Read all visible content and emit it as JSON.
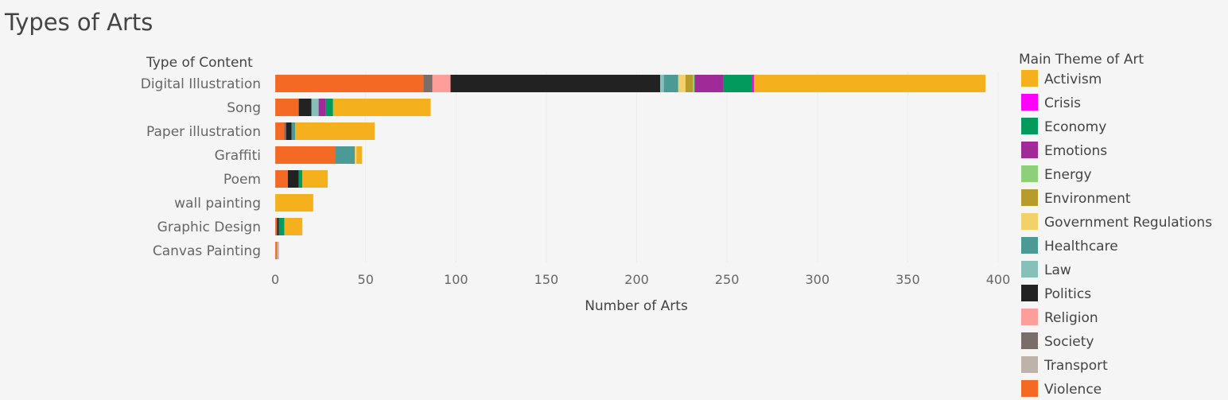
{
  "chart_data": {
    "type": "bar",
    "orientation": "horizontal",
    "stacked": true,
    "title": "Types of Arts",
    "xlabel": "Number of Arts",
    "ylabel": "Type of Content",
    "xlim": [
      -4,
      400
    ],
    "xticks": [
      0,
      50,
      100,
      150,
      200,
      250,
      300,
      350,
      400
    ],
    "grid": true,
    "legend_title": "Main Theme of Art",
    "legend_position": "right",
    "categories": [
      "Digital Illustration",
      "Song",
      "Paper illustration",
      "Graffiti",
      "Poem",
      "wall painting",
      "Graphic Design",
      "Canvas Painting"
    ],
    "segment_order": [
      "Violence",
      "Society",
      "Religion",
      "Politics",
      "Transport",
      "Law",
      "Healthcare",
      "Government Regulations",
      "Environment",
      "Energy",
      "Emotions",
      "Economy",
      "Crisis",
      "Activism"
    ],
    "series": [
      {
        "name": "Activism",
        "color": "#f5b01e",
        "values": [
          128,
          54,
          44,
          3,
          14,
          21,
          10,
          0
        ]
      },
      {
        "name": "Crisis",
        "color": "#ff00ff",
        "values": [
          1,
          0,
          0,
          0,
          0,
          0,
          0,
          0
        ]
      },
      {
        "name": "Economy",
        "color": "#029a5d",
        "values": [
          16,
          4,
          0,
          0,
          2,
          0,
          3,
          0
        ]
      },
      {
        "name": "Emotions",
        "color": "#a02a98",
        "values": [
          16,
          4,
          0,
          0,
          0,
          0,
          0,
          0
        ]
      },
      {
        "name": "Energy",
        "color": "#8ed07a",
        "values": [
          1,
          0,
          0,
          0,
          0,
          0,
          0,
          0
        ]
      },
      {
        "name": "Environment",
        "color": "#b89b2d",
        "values": [
          4,
          0,
          0,
          0,
          0,
          0,
          0,
          0
        ]
      },
      {
        "name": "Government Regulations",
        "color": "#f2d16b",
        "values": [
          4,
          0,
          0,
          1,
          0,
          0,
          0,
          0
        ]
      },
      {
        "name": "Healthcare",
        "color": "#4c9a95",
        "values": [
          8,
          0,
          2,
          11,
          0,
          0,
          0,
          0
        ]
      },
      {
        "name": "Law",
        "color": "#87c0b9",
        "values": [
          2,
          4,
          0,
          0,
          0,
          0,
          0,
          0
        ]
      },
      {
        "name": "Politics",
        "color": "#222222",
        "values": [
          116,
          7,
          3,
          0,
          6,
          0,
          1,
          0
        ]
      },
      {
        "name": "Religion",
        "color": "#fe9e9b",
        "values": [
          10,
          0,
          0,
          0,
          0,
          0,
          0,
          0
        ]
      },
      {
        "name": "Society",
        "color": "#7a6e6b",
        "values": [
          5,
          0,
          1,
          0,
          0,
          0,
          0,
          0
        ]
      },
      {
        "name": "Transport",
        "color": "#bdb3ab",
        "values": [
          0,
          0,
          0,
          0,
          0,
          0,
          0,
          1
        ]
      },
      {
        "name": "Violence",
        "color": "#f46a25",
        "values": [
          82,
          13,
          5,
          33,
          7,
          0,
          1,
          1
        ]
      }
    ]
  }
}
